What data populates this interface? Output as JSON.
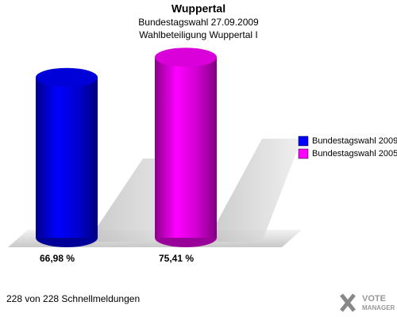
{
  "chart_data": {
    "type": "cylinder-bar",
    "title": "Wuppertal",
    "subtitle": [
      "Bundestagswahl 27.09.2009",
      "Wahlbeteiligung Wuppertal I"
    ],
    "categories": [
      null
    ],
    "series": [
      {
        "name": "Bundestagswahl 2009",
        "color": "#0000ff",
        "values": [
          66.98
        ],
        "value_labels": [
          "66,98 %"
        ]
      },
      {
        "name": "Bundestagswahl 2005",
        "color": "#ff00ff",
        "values": [
          75.41
        ],
        "value_labels": [
          "75,41 %"
        ]
      }
    ],
    "footer": "228 von 228 Schnellmeldungen",
    "logo": [
      "VOTE",
      "MANAGER"
    ]
  }
}
